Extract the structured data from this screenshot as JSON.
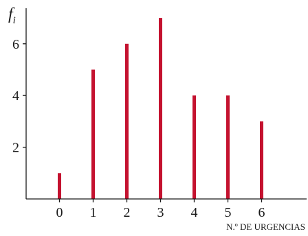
{
  "chart_data": {
    "type": "bar",
    "categories": [
      "0",
      "1",
      "2",
      "3",
      "4",
      "5",
      "6"
    ],
    "values": [
      1,
      5,
      6,
      7,
      4,
      4,
      3
    ],
    "title": "",
    "xlabel": "N.º DE URGENCIAS",
    "ylabel": "f",
    "ylabel_subscript": "i",
    "ylim": [
      0,
      7.5
    ],
    "yticks": [
      2,
      4,
      6
    ],
    "grid": false,
    "bar_color": "#c4122f"
  }
}
